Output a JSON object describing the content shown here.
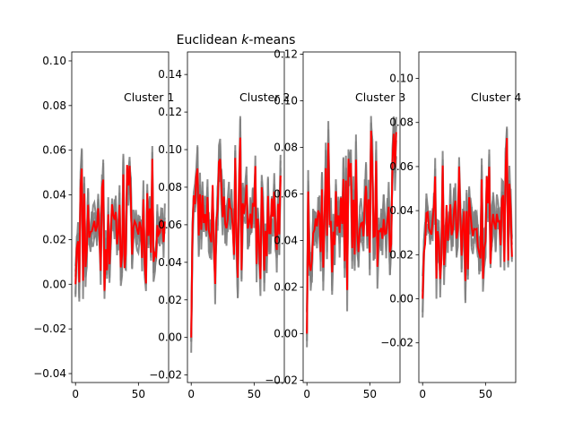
{
  "chart_data": {
    "type": "line",
    "title_prefix": "Euclidean ",
    "title_italic": "k",
    "title_suffix": "-means",
    "x_ticks": [
      0,
      50
    ],
    "panels": [
      {
        "label": "Cluster 1",
        "xlim": [
          -3,
          74
        ],
        "ylim": [
          -0.044,
          0.104
        ],
        "y_ticks": [
          -0.04,
          -0.02,
          0.0,
          0.02,
          0.04,
          0.06,
          0.08,
          0.1
        ],
        "y_tick_labels": [
          "−0.04",
          "−0.02",
          "0.00",
          "0.02",
          "0.04",
          "0.06",
          "0.08",
          "0.10"
        ],
        "base": 0.025,
        "amp": 0.034,
        "seed": 11
      },
      {
        "label": "Cluster 2",
        "xlim": [
          -3,
          74
        ],
        "ylim": [
          -0.024,
          0.152
        ],
        "y_ticks": [
          -0.02,
          0.0,
          0.02,
          0.04,
          0.06,
          0.08,
          0.1,
          0.12,
          0.14
        ],
        "y_tick_labels": [
          "−0.02",
          "0.00",
          "0.02",
          "0.04",
          "0.06",
          "0.08",
          "0.10",
          "0.12",
          "0.14"
        ],
        "base": 0.065,
        "amp": 0.045,
        "seed": 23
      },
      {
        "label": "Cluster 3",
        "xlim": [
          -3,
          74
        ],
        "ylim": [
          -0.021,
          0.121
        ],
        "y_ticks": [
          -0.02,
          0.0,
          0.02,
          0.04,
          0.06,
          0.08,
          0.1,
          0.12
        ],
        "y_tick_labels": [
          "−0.02",
          "0.00",
          "0.02",
          "0.04",
          "0.06",
          "0.08",
          "0.10",
          "0.12"
        ],
        "base": 0.048,
        "amp": 0.04,
        "seed": 37
      },
      {
        "label": "Cluster 4",
        "xlim": [
          -3,
          74
        ],
        "ylim": [
          -0.038,
          0.112
        ],
        "y_ticks": [
          -0.02,
          0.0,
          0.02,
          0.04,
          0.06,
          0.08,
          0.1
        ],
        "y_tick_labels": [
          "−0.02",
          "0.00",
          "0.02",
          "0.04",
          "0.06",
          "0.08",
          "0.10"
        ],
        "base": 0.035,
        "amp": 0.038,
        "seed": 53
      }
    ],
    "colors": {
      "members": "#808080",
      "centroid": "#ff0000",
      "axes": "#000000"
    }
  }
}
